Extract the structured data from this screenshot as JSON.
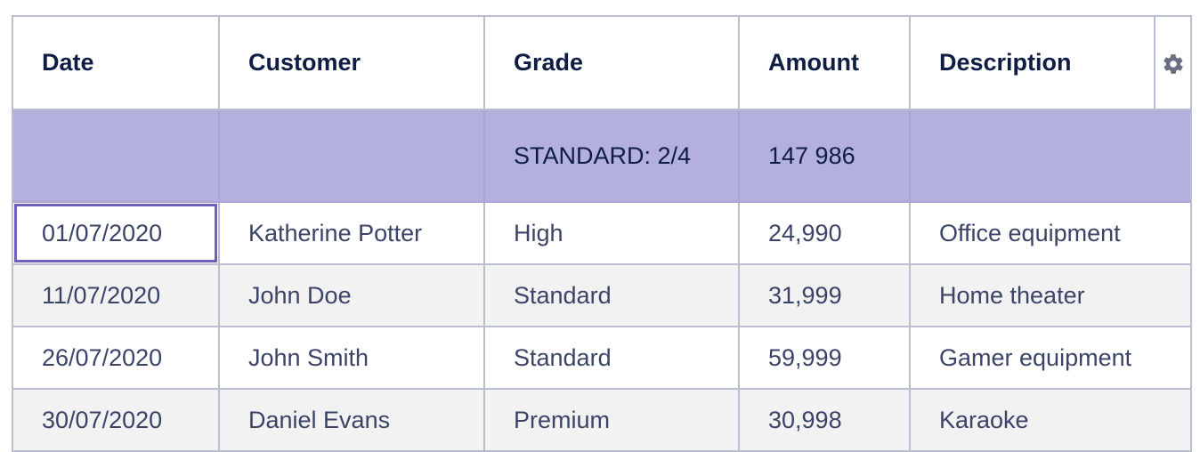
{
  "columns": {
    "date": "Date",
    "customer": "Customer",
    "grade": "Grade",
    "amount": "Amount",
    "description": "Description",
    "settings_icon": "gear-icon"
  },
  "group": {
    "date": "",
    "customer": "",
    "grade": "STANDARD: 2/4",
    "amount": "147 986",
    "description": ""
  },
  "rows": [
    {
      "date": "01/07/2020",
      "customer": "Katherine Potter",
      "grade": "High",
      "amount": "24,990",
      "description": "Office equipment"
    },
    {
      "date": "11/07/2020",
      "customer": "John Doe",
      "grade": "Standard",
      "amount": "31,999",
      "description": "Home theater"
    },
    {
      "date": "26/07/2020",
      "customer": "John Smith",
      "grade": "Standard",
      "amount": "59,999",
      "description": "Gamer equipment"
    },
    {
      "date": "30/07/2020",
      "customer": "Daniel Evans",
      "grade": "Premium",
      "amount": "30,998",
      "description": "Karaoke"
    }
  ],
  "colors": {
    "header_text": "#0f1d45",
    "group_row_bg": "#b3b0de",
    "selection_border": "#6f5fbf",
    "grid_line": "#b9bed0",
    "stripe_bg": "#f2f2f2"
  }
}
